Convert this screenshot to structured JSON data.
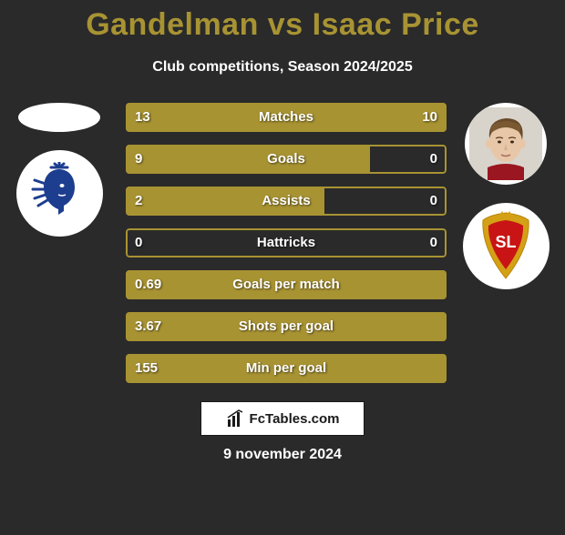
{
  "title_color": "#a89333",
  "title": "Gandelman vs Isaac Price",
  "subtitle": "Club competitions, Season 2024/2025",
  "date": "9 november 2024",
  "branding_text": "FcTables.com",
  "player1": {
    "avatar_bg": "#ffffff",
    "avatar_empty": true,
    "club_primary": "#1d3d8f",
    "club_secondary": "#ffffff"
  },
  "player2": {
    "avatar_bg": "#ffffff",
    "avatar_empty": false,
    "club_primary": "#d4a015",
    "club_secondary": "#c81414"
  },
  "bar_style": {
    "fill_color": "#a89333",
    "outline_color": "#a89333",
    "track_color": "transparent",
    "height": 32,
    "radius": 4,
    "font_size": 15
  },
  "stats": [
    {
      "label": "Matches",
      "left_val": "13",
      "right_val": "10",
      "left_pct": 56.5,
      "right_pct": 43.5
    },
    {
      "label": "Goals",
      "left_val": "9",
      "right_val": "0",
      "left_pct": 76.0,
      "right_pct": 0
    },
    {
      "label": "Assists",
      "left_val": "2",
      "right_val": "0",
      "left_pct": 62.0,
      "right_pct": 0
    },
    {
      "label": "Hattricks",
      "left_val": "0",
      "right_val": "0",
      "left_pct": 0,
      "right_pct": 0
    },
    {
      "label": "Goals per match",
      "left_val": "0.69",
      "right_val": "",
      "left_pct": 100,
      "right_pct": 0
    },
    {
      "label": "Shots per goal",
      "left_val": "3.67",
      "right_val": "",
      "left_pct": 100,
      "right_pct": 0
    },
    {
      "label": "Min per goal",
      "left_val": "155",
      "right_val": "",
      "left_pct": 100,
      "right_pct": 0
    }
  ]
}
